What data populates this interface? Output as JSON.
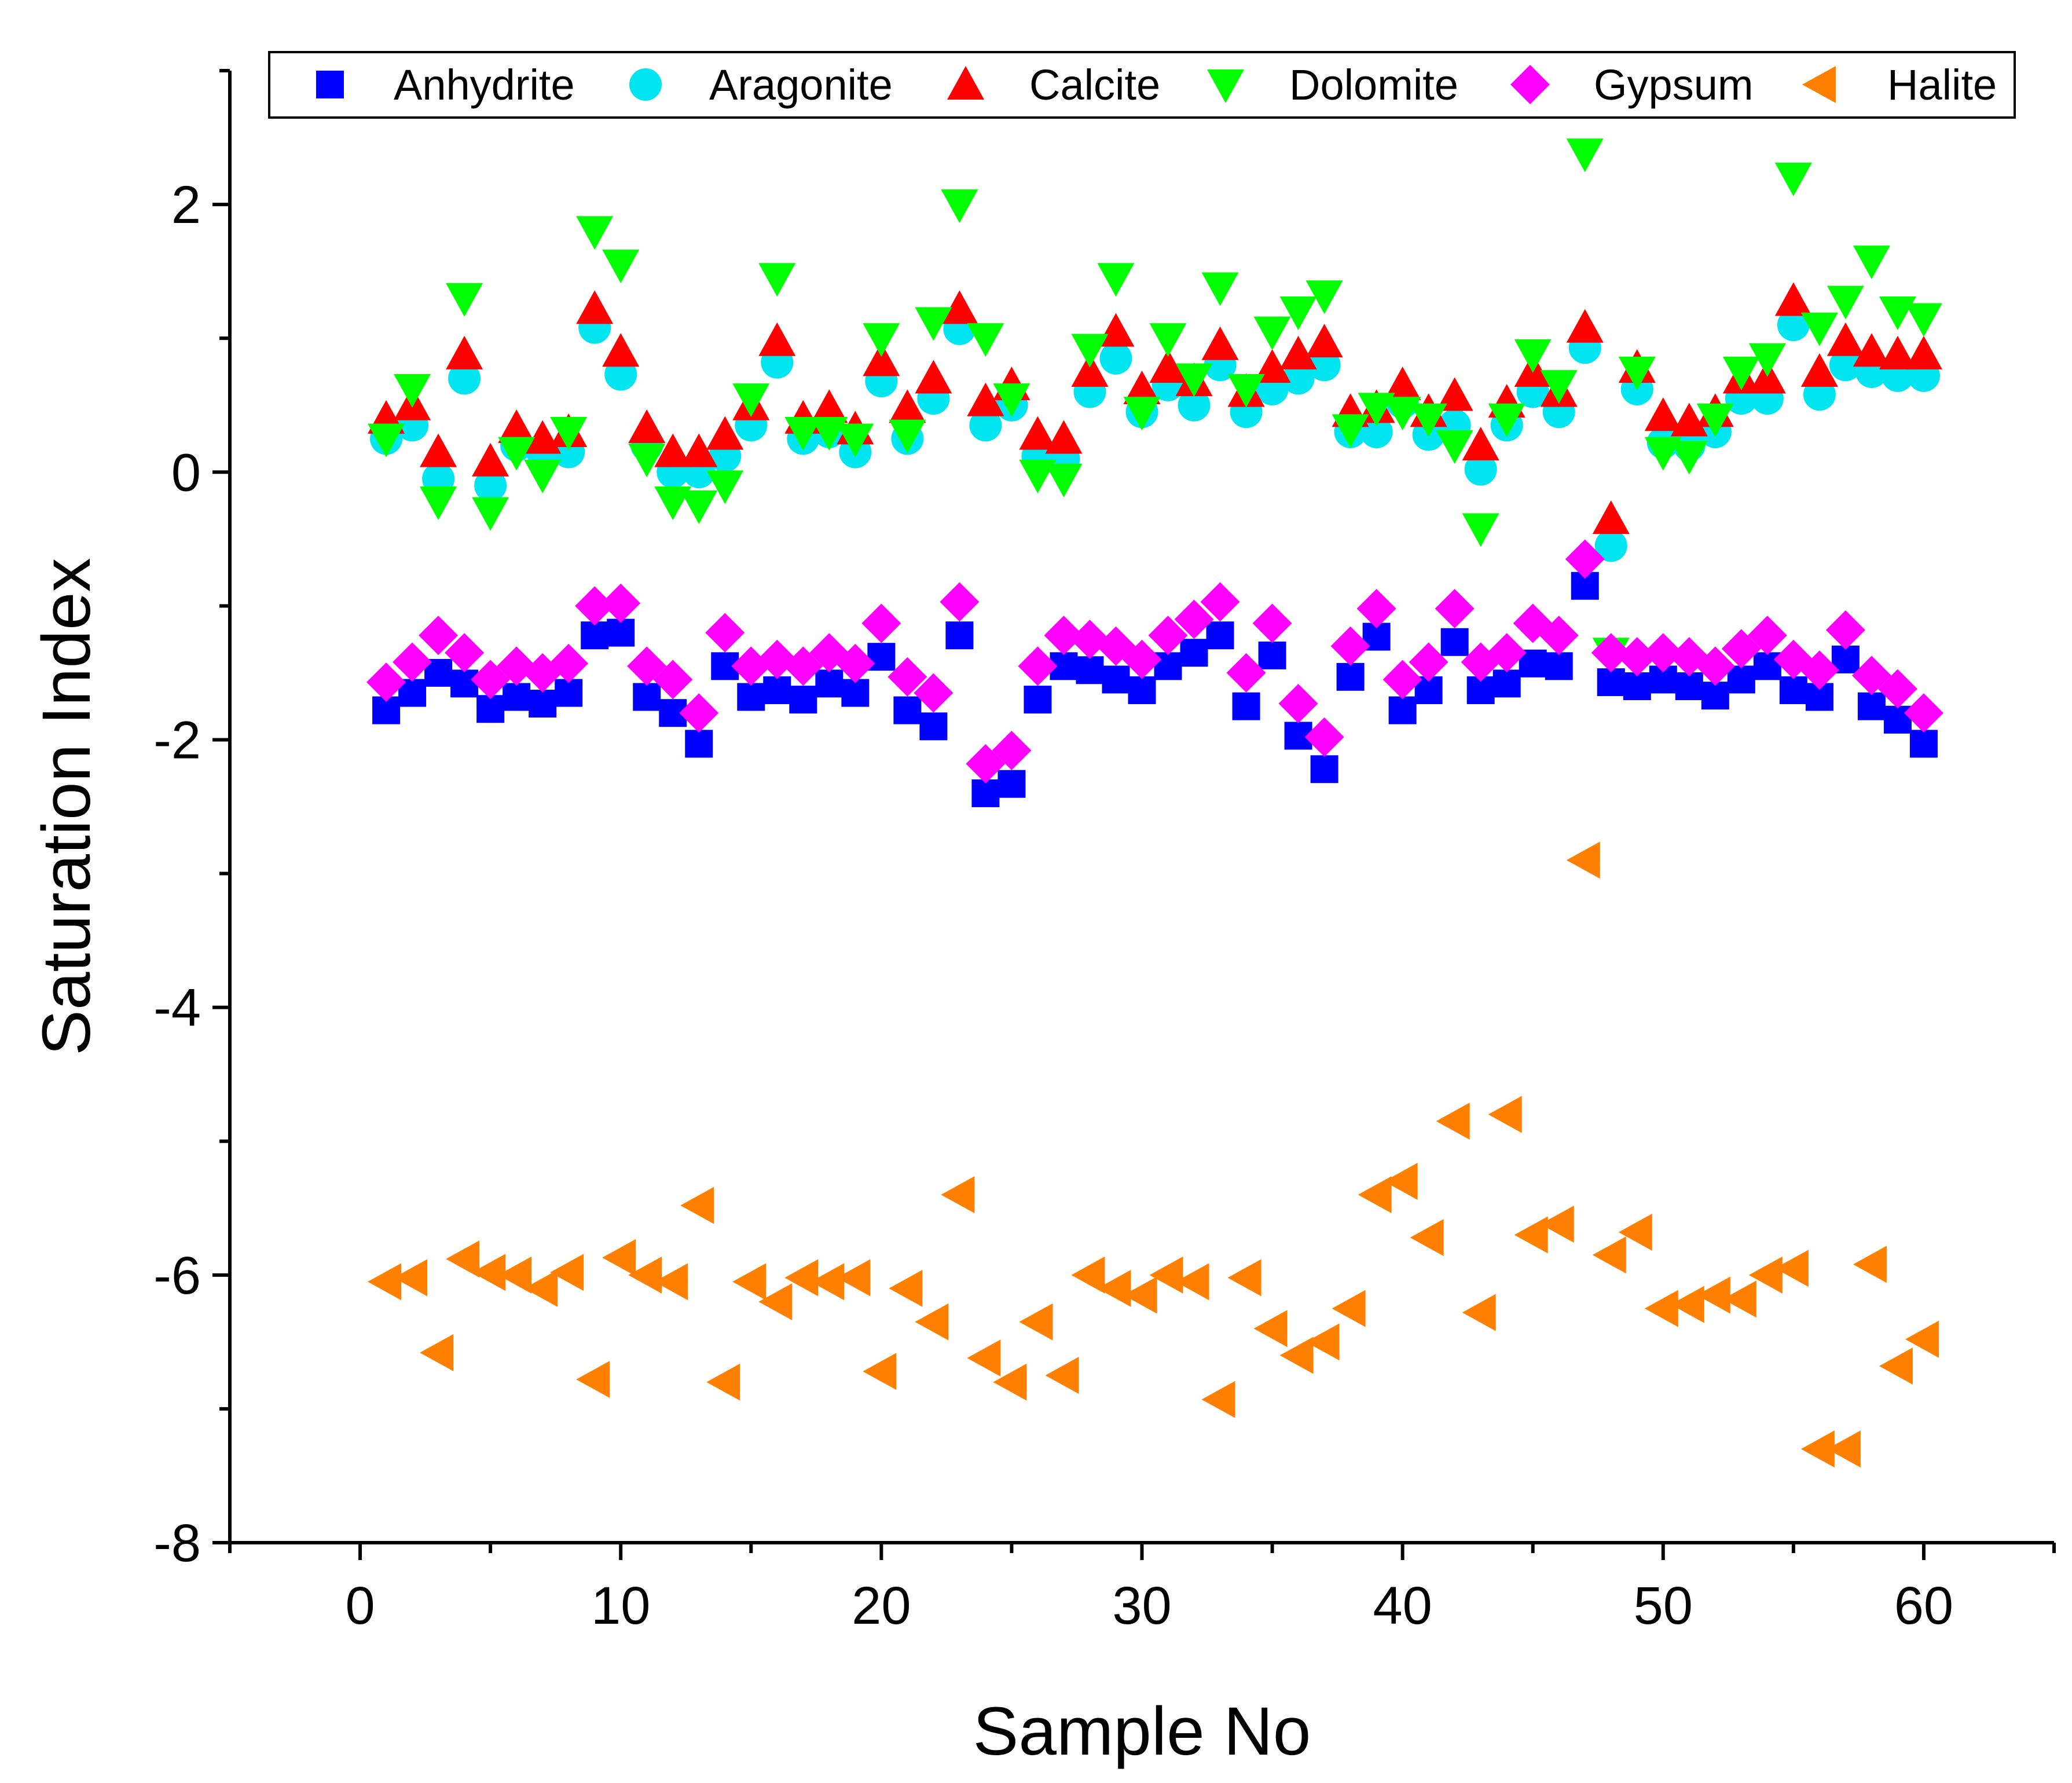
{
  "chart_data": {
    "type": "scatter",
    "title": "",
    "xlabel": "Sample No",
    "ylabel": "Saturation Index",
    "xlim": [
      -5,
      65
    ],
    "ylim": [
      -8,
      3
    ],
    "xticks": [
      0,
      10,
      20,
      30,
      40,
      50,
      60
    ],
    "xtick_labels": [
      "0",
      "10",
      "20",
      "30",
      "40",
      "50",
      "60"
    ],
    "yticks": [
      -8,
      -6,
      -4,
      -2,
      0,
      2
    ],
    "ytick_labels": [
      "-8",
      "-6",
      "-4",
      "-2",
      "0",
      "2"
    ],
    "grid": false,
    "legend_position": "top",
    "x": [
      1,
      2,
      3,
      4,
      5,
      6,
      7,
      8,
      9,
      10,
      11,
      12,
      13,
      14,
      15,
      16,
      17,
      18,
      19,
      20,
      21,
      22,
      23,
      24,
      25,
      26,
      27,
      28,
      29,
      30,
      31,
      32,
      33,
      34,
      35,
      36,
      37,
      38,
      39,
      40,
      41,
      42,
      43,
      44,
      45,
      46,
      47,
      48,
      49,
      50,
      51,
      52,
      53,
      54,
      55,
      56,
      57,
      58,
      59,
      60
    ],
    "series": [
      {
        "name": "Anhydrite",
        "marker": "square",
        "color": "#0000ff",
        "values": [
          -1.78,
          -1.65,
          -1.5,
          -1.58,
          -1.77,
          -1.68,
          -1.73,
          -1.65,
          -1.22,
          -1.2,
          -1.68,
          -1.8,
          -2.03,
          -1.45,
          -1.68,
          -1.63,
          -1.7,
          -1.58,
          -1.65,
          -1.38,
          -1.78,
          -1.9,
          -1.22,
          -2.4,
          -2.33,
          -1.7,
          -1.45,
          -1.48,
          -1.55,
          -1.63,
          -1.45,
          -1.35,
          -1.22,
          -1.75,
          -1.37,
          -1.97,
          -2.22,
          -1.53,
          -1.23,
          -1.78,
          -1.63,
          -1.27,
          -1.63,
          -1.58,
          -1.43,
          -1.45,
          -0.85,
          -1.57,
          -1.6,
          -1.55,
          -1.6,
          -1.67,
          -1.55,
          -1.45,
          -1.63,
          -1.68,
          -1.4,
          -1.75,
          -1.85,
          -2.03
        ]
      },
      {
        "name": "Aragonite",
        "marker": "circle",
        "color": "#00e5f0",
        "values": [
          0.25,
          0.35,
          -0.05,
          0.7,
          -0.1,
          0.2,
          0.15,
          0.15,
          1.08,
          0.73,
          0.2,
          0.0,
          0.0,
          0.12,
          0.35,
          0.82,
          0.25,
          0.3,
          0.15,
          0.68,
          0.25,
          0.55,
          1.07,
          0.35,
          0.5,
          0.12,
          0.1,
          0.6,
          0.85,
          0.45,
          0.65,
          0.5,
          0.8,
          0.45,
          0.62,
          0.7,
          0.8,
          0.3,
          0.3,
          0.52,
          0.28,
          0.35,
          0.02,
          0.35,
          0.6,
          0.45,
          0.93,
          -0.55,
          0.62,
          0.22,
          0.2,
          0.3,
          0.55,
          0.55,
          1.1,
          0.58,
          0.8,
          0.75,
          0.72,
          0.72
        ]
      },
      {
        "name": "Calcite",
        "marker": "triangle-up",
        "color": "#ff0000",
        "values": [
          0.4,
          0.5,
          0.15,
          0.88,
          0.08,
          0.33,
          0.25,
          0.3,
          1.22,
          0.9,
          0.33,
          0.15,
          0.15,
          0.28,
          0.5,
          0.98,
          0.4,
          0.48,
          0.32,
          0.83,
          0.48,
          0.7,
          1.22,
          0.53,
          0.65,
          0.28,
          0.25,
          0.75,
          1.05,
          0.62,
          0.78,
          0.68,
          0.95,
          0.6,
          0.78,
          0.88,
          0.97,
          0.45,
          0.48,
          0.65,
          0.45,
          0.57,
          0.2,
          0.52,
          0.75,
          0.6,
          1.08,
          -0.35,
          0.78,
          0.42,
          0.38,
          0.45,
          0.7,
          0.7,
          1.28,
          0.75,
          0.98,
          0.9,
          0.88,
          0.88
        ]
      },
      {
        "name": "Dolomite",
        "marker": "triangle-down",
        "color": "#00ff00",
        "values": [
          0.25,
          0.62,
          -0.22,
          1.3,
          -0.3,
          0.15,
          -0.02,
          0.3,
          1.8,
          1.55,
          0.1,
          -0.22,
          -0.25,
          -0.1,
          0.55,
          1.45,
          0.3,
          0.3,
          0.25,
          1.0,
          0.28,
          1.12,
          2.0,
          1.0,
          0.55,
          -0.02,
          -0.05,
          0.92,
          1.45,
          0.45,
          1.0,
          0.7,
          1.38,
          0.62,
          1.05,
          1.2,
          1.32,
          0.32,
          0.48,
          0.45,
          0.4,
          0.2,
          -0.42,
          0.4,
          0.88,
          0.65,
          2.38,
          -1.35,
          0.75,
          0.15,
          0.12,
          0.4,
          0.75,
          0.85,
          2.2,
          1.08,
          1.28,
          1.58,
          1.2,
          1.15
        ]
      },
      {
        "name": "Gypsum",
        "marker": "diamond",
        "color": "#ff00ff",
        "values": [
          -1.57,
          -1.42,
          -1.22,
          -1.35,
          -1.55,
          -1.45,
          -1.5,
          -1.43,
          -1.0,
          -0.98,
          -1.45,
          -1.55,
          -1.8,
          -1.2,
          -1.45,
          -1.4,
          -1.45,
          -1.35,
          -1.43,
          -1.13,
          -1.53,
          -1.65,
          -0.97,
          -2.18,
          -2.08,
          -1.45,
          -1.22,
          -1.25,
          -1.3,
          -1.4,
          -1.22,
          -1.1,
          -0.97,
          -1.5,
          -1.13,
          -1.73,
          -1.98,
          -1.3,
          -1.02,
          -1.55,
          -1.42,
          -1.02,
          -1.42,
          -1.35,
          -1.13,
          -1.22,
          -0.65,
          -1.35,
          -1.38,
          -1.35,
          -1.38,
          -1.45,
          -1.32,
          -1.22,
          -1.4,
          -1.48,
          -1.18,
          -1.52,
          -1.62,
          -1.8
        ]
      },
      {
        "name": "Halite",
        "marker": "triangle-left",
        "color": "#ff8000",
        "values": [
          -6.05,
          -6.02,
          -6.58,
          -5.88,
          -5.98,
          -6.0,
          -6.1,
          -5.98,
          -6.78,
          -5.87,
          -6.0,
          -6.05,
          -5.48,
          -6.8,
          -6.05,
          -6.2,
          -6.02,
          -6.05,
          -6.02,
          -6.72,
          -6.1,
          -6.35,
          -5.4,
          -6.62,
          -6.8,
          -6.35,
          -6.75,
          -6.0,
          -6.1,
          -6.15,
          -6.0,
          -6.05,
          -6.93,
          -6.02,
          -6.4,
          -6.6,
          -6.5,
          -6.25,
          -5.4,
          -5.3,
          -5.72,
          -4.85,
          -6.28,
          -4.8,
          -5.7,
          -5.62,
          -2.9,
          -5.85,
          -5.68,
          -6.25,
          -6.22,
          -6.15,
          -6.18,
          -6.0,
          -5.95,
          -7.3,
          -7.3,
          -5.92,
          -6.68,
          -6.48
        ]
      }
    ]
  }
}
